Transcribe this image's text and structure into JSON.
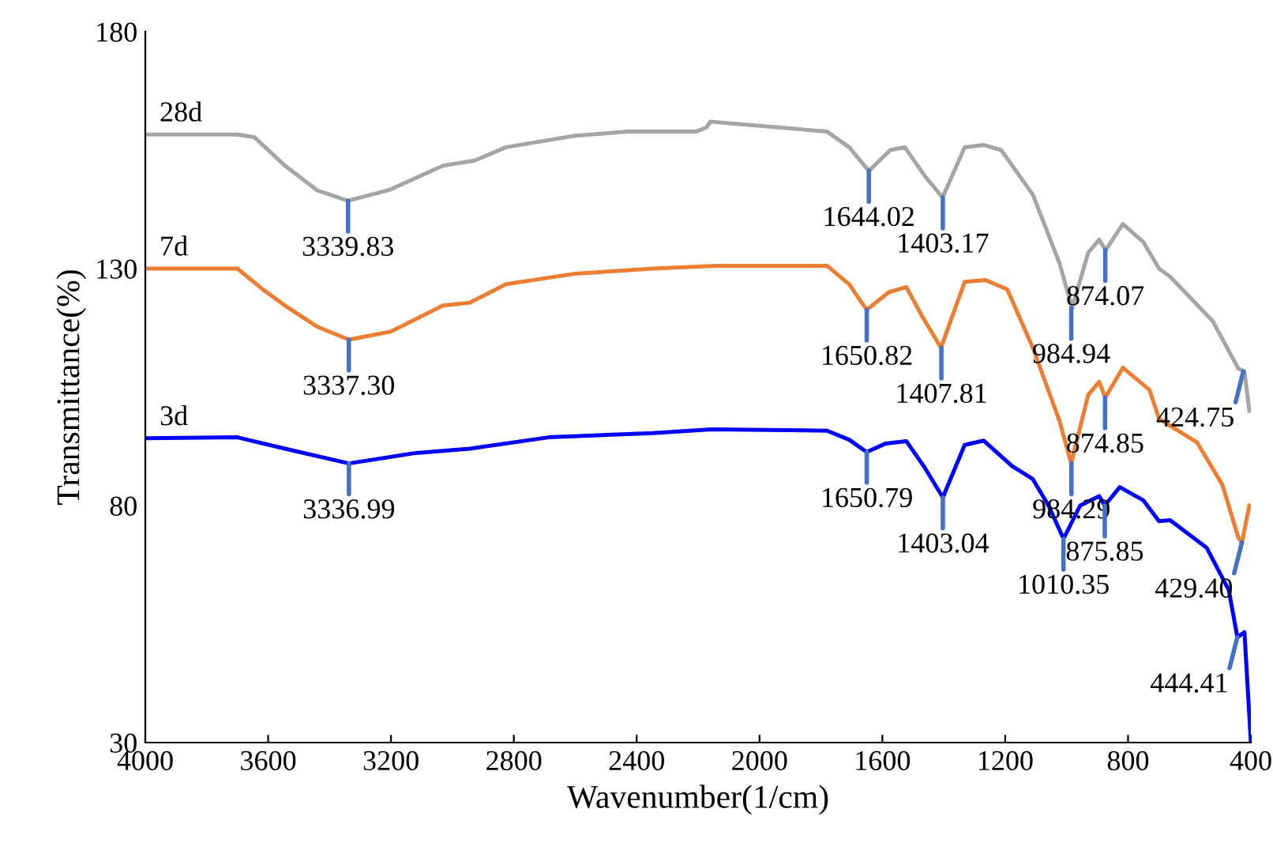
{
  "chart_data": {
    "type": "line",
    "xlabel": "Wavenumber(1/cm)",
    "ylabel": "Transmittance(%)",
    "xlim": [
      4000,
      400
    ],
    "ylim": [
      30,
      180
    ],
    "xticks": [
      4000,
      3600,
      3200,
      2800,
      2400,
      2000,
      1600,
      1200,
      800,
      400
    ],
    "yticks": [
      30,
      80,
      130,
      180
    ],
    "grid": false,
    "legend": false,
    "marker": "none",
    "line_style": "solid",
    "series": [
      {
        "name": "28d",
        "color": "#a5a5a5",
        "x": [
          4000,
          3700,
          3644,
          3545,
          3440,
          3340,
          3201,
          3031,
          2928,
          2825,
          2604,
          2430,
          2207,
          2172,
          2160,
          1780,
          1708,
          1644,
          1574,
          1527,
          1460,
          1404,
          1332,
          1270,
          1213,
          1110,
          1023,
          982,
          930,
          894,
          873,
          817,
          750,
          699,
          663,
          524,
          441,
          421,
          405
        ],
        "values": [
          158.3,
          158.3,
          157.7,
          151.7,
          146.5,
          144.3,
          146.7,
          151.7,
          152.8,
          155.6,
          158,
          158.9,
          158.9,
          159.8,
          161,
          158.9,
          155.6,
          150.6,
          155,
          155.6,
          149.4,
          145,
          155.6,
          156.1,
          155,
          145.6,
          131.1,
          121.7,
          133.3,
          136.1,
          133.9,
          139.4,
          135.6,
          130,
          128.3,
          118.9,
          108.9,
          108.3,
          100
        ]
      },
      {
        "name": "7d",
        "color": "#ed7d31",
        "x": [
          4000,
          3700,
          3617,
          3545,
          3442,
          3337,
          3201,
          3031,
          2944,
          2825,
          2604,
          2347,
          2141,
          1780,
          1708,
          1651,
          1579,
          1522,
          1471,
          1409,
          1332,
          1265,
          1193,
          1110,
          1023,
          985,
          930,
          894,
          874,
          817,
          730,
          699,
          575,
          493,
          441,
          429,
          405
        ],
        "values": [
          130,
          130,
          125.6,
          122.2,
          117.8,
          115,
          116.7,
          122.2,
          122.8,
          126.7,
          128.9,
          130,
          130.6,
          130.6,
          126.7,
          121.3,
          125,
          126.1,
          120,
          113.3,
          127.2,
          127.6,
          125.6,
          113.3,
          97.8,
          88.9,
          103.3,
          106.1,
          102.8,
          109.1,
          104.4,
          98.3,
          93.3,
          84.4,
          73.3,
          72.2,
          80
        ]
      },
      {
        "name": "3d",
        "color": "#0000ff",
        "x": [
          4000,
          3700,
          3545,
          3337,
          3119,
          2944,
          2687,
          2347,
          2156,
          1780,
          1708,
          1651,
          1589,
          1522,
          1460,
          1403,
          1332,
          1270,
          1177,
          1110,
          1059,
          1010,
          956,
          894,
          876,
          827,
          750,
          699,
          663,
          544,
          472,
          444,
          421,
          400
        ],
        "values": [
          94.2,
          94.4,
          92,
          88.9,
          91.1,
          92,
          94.4,
          95.3,
          96.1,
          95.8,
          93.9,
          91.3,
          93.1,
          93.6,
          87.8,
          81.7,
          92.8,
          93.7,
          88.3,
          85.6,
          80,
          73,
          80,
          82,
          80,
          83.9,
          81.1,
          76.7,
          76.9,
          71.1,
          62.2,
          52.2,
          53.3,
          30
        ]
      }
    ],
    "annotations": [
      {
        "text": "3339.83",
        "x": 3339.83,
        "y": 144.3
      },
      {
        "text": "1644.02",
        "x": 1644.02,
        "y": 150.6
      },
      {
        "text": "1403.17",
        "x": 1403.17,
        "y": 145
      },
      {
        "text": "984.94",
        "x": 984.94,
        "y": 121.7
      },
      {
        "text": "874.07",
        "x": 874.07,
        "y": 133.9
      },
      {
        "text": "424.75",
        "x": 424.75,
        "y": 108.3
      },
      {
        "text": "3337.30",
        "x": 3337.3,
        "y": 115
      },
      {
        "text": "1650.82",
        "x": 1650.82,
        "y": 121.3
      },
      {
        "text": "1407.81",
        "x": 1407.81,
        "y": 113.3
      },
      {
        "text": "984.29",
        "x": 984.29,
        "y": 88.9
      },
      {
        "text": "874.85",
        "x": 874.85,
        "y": 102.8
      },
      {
        "text": "429.40",
        "x": 429.4,
        "y": 72.2
      },
      {
        "text": "3336.99",
        "x": 3336.99,
        "y": 88.9
      },
      {
        "text": "1650.79",
        "x": 1650.79,
        "y": 91.3
      },
      {
        "text": "1403.04",
        "x": 1403.04,
        "y": 81.7
      },
      {
        "text": "1010.35",
        "x": 1010.35,
        "y": 73
      },
      {
        "text": "875.85",
        "x": 875.85,
        "y": 80
      },
      {
        "text": "444.41",
        "x": 444.41,
        "y": 52.2
      }
    ]
  }
}
